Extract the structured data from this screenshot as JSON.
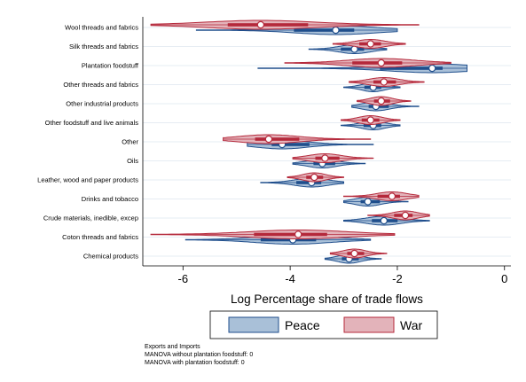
{
  "chart_data": {
    "type": "violin",
    "title": "",
    "xlabel": "Log Percentage share of trade flows",
    "ylabel": "",
    "xlim": [
      -6.75,
      0.12
    ],
    "xticks": [
      -6,
      -4,
      -2,
      0
    ],
    "xtick_labels": [
      "-6",
      "-4",
      "-2",
      "0"
    ],
    "grid": "horizontal",
    "legend_position": "bottom",
    "categories": [
      "Wool threads and fabrics",
      "Silk threads and fabrics",
      "Plantation foodstuff",
      "Other threads and fabrics",
      "Other industrial products",
      "Other foodstuff and live animals",
      "Other",
      "Oils",
      "Leather, wood and paper products",
      "Drinks and tobacco",
      "Crude materials, inedible, excep",
      "Coton threads and fabrics",
      "Chemical products"
    ],
    "series": [
      {
        "name": "War",
        "color": "#b5293b",
        "fill": "#e3b3ba",
        "medians": [
          -4.55,
          -2.5,
          -2.3,
          -2.25,
          -2.3,
          -2.5,
          -4.4,
          -3.35,
          -3.55,
          -2.1,
          -1.85,
          -3.85,
          -2.8
        ],
        "mins": [
          -6.6,
          -3.2,
          -4.1,
          -2.9,
          -2.75,
          -3.05,
          -5.25,
          -3.95,
          -4.05,
          -3.0,
          -2.55,
          -6.6,
          -3.25
        ],
        "maxs": [
          -1.6,
          -1.85,
          -1.0,
          -1.5,
          -1.75,
          -1.95,
          -2.5,
          -2.45,
          -3.0,
          -1.6,
          -1.4,
          -2.05,
          -2.2
        ]
      },
      {
        "name": "Peace",
        "color": "#1f4e8c",
        "fill": "#a9c0d8",
        "medians": [
          -3.15,
          -2.8,
          -1.35,
          -2.45,
          -2.4,
          -2.45,
          -4.15,
          -3.4,
          -3.6,
          -2.55,
          -2.25,
          -3.95,
          -2.9
        ],
        "mins": [
          -5.75,
          -3.65,
          -4.6,
          -3.0,
          -2.85,
          -3.05,
          -4.8,
          -3.95,
          -4.55,
          -3.0,
          -3.0,
          -5.95,
          -3.35
        ],
        "maxs": [
          -2.0,
          -2.2,
          -0.7,
          -1.95,
          -1.6,
          -1.95,
          -2.45,
          -2.6,
          -3.0,
          -1.8,
          -1.4,
          -2.5,
          -2.3
        ]
      }
    ]
  },
  "notes": [
    "Exports and Imports",
    "MANOVA without plantation foodstuff: 0",
    "MANOVA with plantation foodstuff: 0"
  ]
}
